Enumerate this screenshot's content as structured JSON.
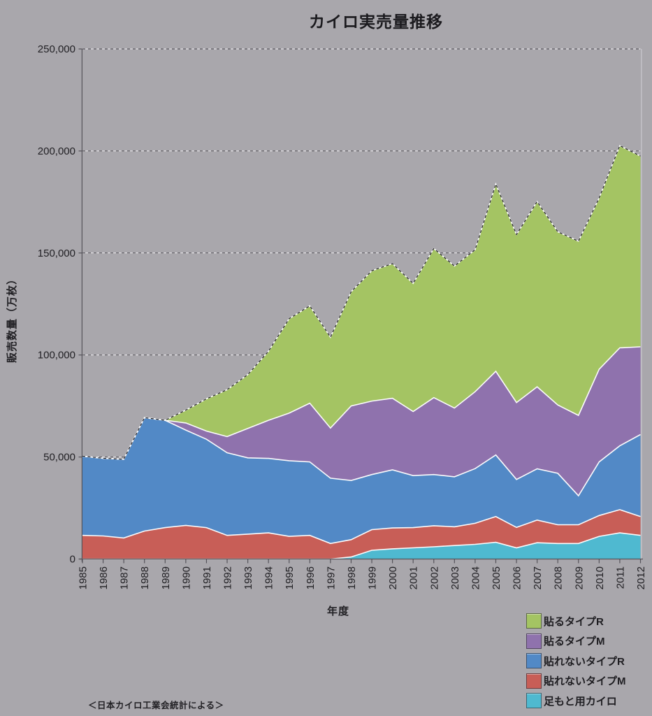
{
  "title": "カイロ実売量推移",
  "y_axis": {
    "title": "販売数量（万枚）",
    "tick_labels": [
      "0",
      "50,000",
      "100,000",
      "150,000",
      "200,000",
      "250,000"
    ],
    "tick_values": [
      0,
      50000,
      100000,
      150000,
      200000,
      250000
    ]
  },
  "x_axis": {
    "title": "年度"
  },
  "source_note": "＜日本カイロ工業会統計による＞",
  "colors": {
    "background": "#a9a7ac",
    "gridline_dark": "#504e54",
    "gridline_light": "#eceaee",
    "axis": "#55535a",
    "area_outline": "#fbfbfc",
    "total_dash_line": "#232226",
    "text": "#222125"
  },
  "legend": [
    {
      "label": "貼るタイプR",
      "color": "#a4c463"
    },
    {
      "label": "貼るタイプM",
      "color": "#8f72ad"
    },
    {
      "label": "貼れないタイプR",
      "color": "#5289c6"
    },
    {
      "label": "貼れないタイプM",
      "color": "#c85e57"
    },
    {
      "label": "足もと用カイロ",
      "color": "#4fb9d0"
    }
  ],
  "chart_data": {
    "type": "area",
    "stacked": true,
    "title": "カイロ実売量推移",
    "xlabel": "年度",
    "ylabel": "販売数量（万枚）",
    "ylim": [
      0,
      250000
    ],
    "grid": "horizontal-dashed",
    "legend_position": "bottom-right",
    "categories": [
      1985,
      1986,
      1987,
      1988,
      1989,
      1990,
      1991,
      1992,
      1993,
      1994,
      1995,
      1996,
      1997,
      1998,
      1999,
      2000,
      2001,
      2002,
      2003,
      2004,
      2005,
      2006,
      2007,
      2008,
      2009,
      2010,
      2011,
      2012
    ],
    "series": [
      {
        "name": "足もと用カイロ",
        "color": "#4fb9d0",
        "values": [
          0,
          0,
          0,
          0,
          0,
          0,
          0,
          0,
          0,
          0,
          0,
          0,
          0,
          1000,
          4300,
          5000,
          5500,
          6000,
          6600,
          7200,
          8200,
          5500,
          8000,
          7600,
          7600,
          11100,
          12800,
          11600
        ]
      },
      {
        "name": "貼れないタイプM",
        "color": "#c85e57",
        "values": [
          11600,
          11300,
          10300,
          13700,
          15400,
          16500,
          15400,
          11600,
          12200,
          12800,
          11100,
          11600,
          7600,
          8500,
          10100,
          10200,
          9900,
          10300,
          9200,
          10300,
          12600,
          10000,
          11100,
          9200,
          9200,
          10200,
          11400,
          9200
        ]
      },
      {
        "name": "貼れないタイプR",
        "color": "#5289c6",
        "values": [
          38800,
          38100,
          38600,
          55600,
          52600,
          46700,
          43300,
          40500,
          37400,
          36500,
          37100,
          36000,
          32000,
          29000,
          27000,
          28500,
          25500,
          25100,
          24500,
          26800,
          30200,
          23500,
          25100,
          25200,
          14200,
          26300,
          31300,
          40200
        ]
      },
      {
        "name": "貼るタイプM",
        "color": "#8f72ad",
        "values": [
          0,
          0,
          0,
          0,
          0,
          3500,
          4000,
          7900,
          14400,
          18700,
          23300,
          28800,
          24600,
          36500,
          36000,
          35100,
          31400,
          37700,
          33700,
          37700,
          41000,
          37700,
          40200,
          33500,
          39400,
          45400,
          48000,
          43000
        ]
      },
      {
        "name": "貼るタイプR",
        "color": "#a4c463",
        "values": [
          0,
          0,
          0,
          0,
          0,
          6300,
          15800,
          23000,
          26400,
          33800,
          46300,
          47700,
          44500,
          56000,
          63900,
          66000,
          62800,
          73100,
          69600,
          69600,
          91800,
          82300,
          90800,
          84900,
          85400,
          84000,
          99100,
          93500
        ]
      }
    ]
  }
}
